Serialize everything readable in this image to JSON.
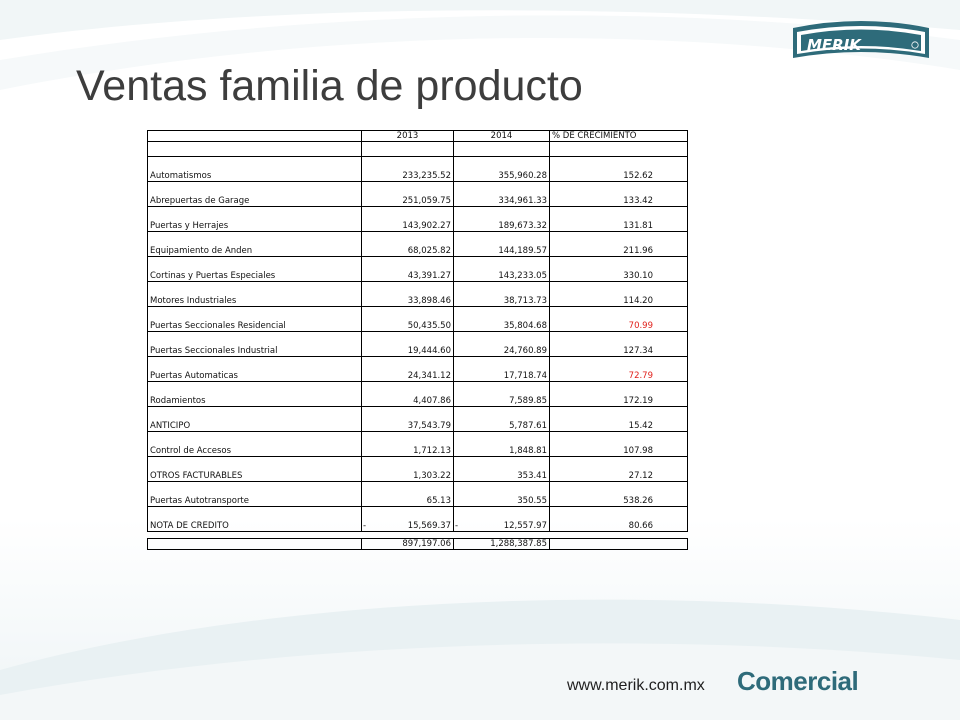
{
  "title": "Ventas familia de producto",
  "logo_text": "MERIK",
  "footer": {
    "url": "www.merik.com.mx",
    "brand": "Comercial"
  },
  "colors": {
    "title": "#3d3d3d",
    "brand": "#2e6b7a",
    "negative_growth": "#e0201b",
    "logo_fill": "#2e6b7a"
  },
  "table": {
    "headers": [
      "",
      "2013",
      "2014",
      "% DE CRECIMIENTO"
    ],
    "rows": [
      {
        "name": "Automatismos",
        "y2013": "233,235.52",
        "y2014": "355,960.28",
        "growth": "152.62",
        "red": false
      },
      {
        "name": "Abrepuertas de Garage",
        "y2013": "251,059.75",
        "y2014": "334,961.33",
        "growth": "133.42",
        "red": false
      },
      {
        "name": "Puertas y Herrajes",
        "y2013": "143,902.27",
        "y2014": "189,673.32",
        "growth": "131.81",
        "red": false
      },
      {
        "name": "Equipamiento de Anden",
        "y2013": "68,025.82",
        "y2014": "144,189.57",
        "growth": "211.96",
        "red": false
      },
      {
        "name": "Cortinas y Puertas Especiales",
        "y2013": "43,391.27",
        "y2014": "143,233.05",
        "growth": "330.10",
        "red": false
      },
      {
        "name": "Motores Industriales",
        "y2013": "33,898.46",
        "y2014": "38,713.73",
        "growth": "114.20",
        "red": false
      },
      {
        "name": "Puertas Seccionales Residencial",
        "y2013": "50,435.50",
        "y2014": "35,804.68",
        "growth": "70.99",
        "red": true
      },
      {
        "name": "Puertas Seccionales Industrial",
        "y2013": "19,444.60",
        "y2014": "24,760.89",
        "growth": "127.34",
        "red": false
      },
      {
        "name": "Puertas Automaticas",
        "y2013": "24,341.12",
        "y2014": "17,718.74",
        "growth": "72.79",
        "red": true
      },
      {
        "name": "Rodamientos",
        "y2013": "4,407.86",
        "y2014": "7,589.85",
        "growth": "172.19",
        "red": false
      },
      {
        "name": "ANTICIPO",
        "y2013": "37,543.79",
        "y2014": "5,787.61",
        "growth": "15.42",
        "red": false
      },
      {
        "name": "Control de Accesos",
        "y2013": "1,712.13",
        "y2014": "1,848.81",
        "growth": "107.98",
        "red": false
      },
      {
        "name": "OTROS FACTURABLES",
        "y2013": "1,303.22",
        "y2014": "353.41",
        "growth": "27.12",
        "red": false
      },
      {
        "name": "Puertas Autotransporte",
        "y2013": "65.13",
        "y2014": "350.55",
        "growth": "538.26",
        "red": false
      },
      {
        "name": "NOTA DE CREDITO",
        "y2013": "15,569.37",
        "y2014": "12,557.97",
        "growth": "80.66",
        "red": false,
        "negative": true
      }
    ],
    "totals": {
      "y2013": "897,197.06",
      "y2014": "1,288,387.85"
    },
    "negative_sign": "-"
  }
}
